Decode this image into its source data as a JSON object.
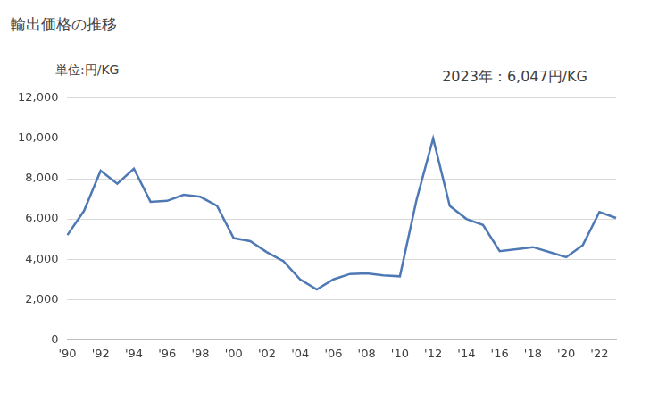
{
  "chart_data": {
    "type": "line",
    "title": "輸出価格の推移",
    "y_label": "単位:円/KG",
    "annotation": "2023年：6,047円/KG",
    "categories": [
      "'90",
      null,
      "'92",
      null,
      "'94",
      null,
      "'96",
      null,
      "'98",
      null,
      "'00",
      null,
      "'02",
      null,
      "'04",
      null,
      "'06",
      null,
      "'08",
      null,
      "'10",
      null,
      "'12",
      null,
      "'14",
      null,
      "'16",
      null,
      "'18",
      null,
      "'20",
      null,
      "'22",
      null
    ],
    "values": [
      5200,
      6400,
      8400,
      7750,
      8500,
      6850,
      6900,
      7200,
      7100,
      6650,
      5050,
      4900,
      4350,
      3900,
      3000,
      2500,
      3000,
      3270,
      3300,
      3200,
      3150,
      6950,
      10000,
      6650,
      6000,
      5700,
      4400,
      4500,
      4600,
      4350,
      4100,
      4700,
      6350,
      6047
    ],
    "color": "#4e79b4",
    "ylim": [
      0,
      12000
    ],
    "yticks": [
      0,
      {
        "value": 2000,
        "label": "2,000"
      },
      {
        "value": 4000,
        "label": "4,000"
      },
      {
        "value": 6000,
        "label": "6,000"
      },
      {
        "value": 8000,
        "label": "8,000"
      },
      {
        "value": 10000,
        "label": "10,000"
      },
      {
        "value": 12000,
        "label": "12,000"
      }
    ],
    "grid": true
  }
}
